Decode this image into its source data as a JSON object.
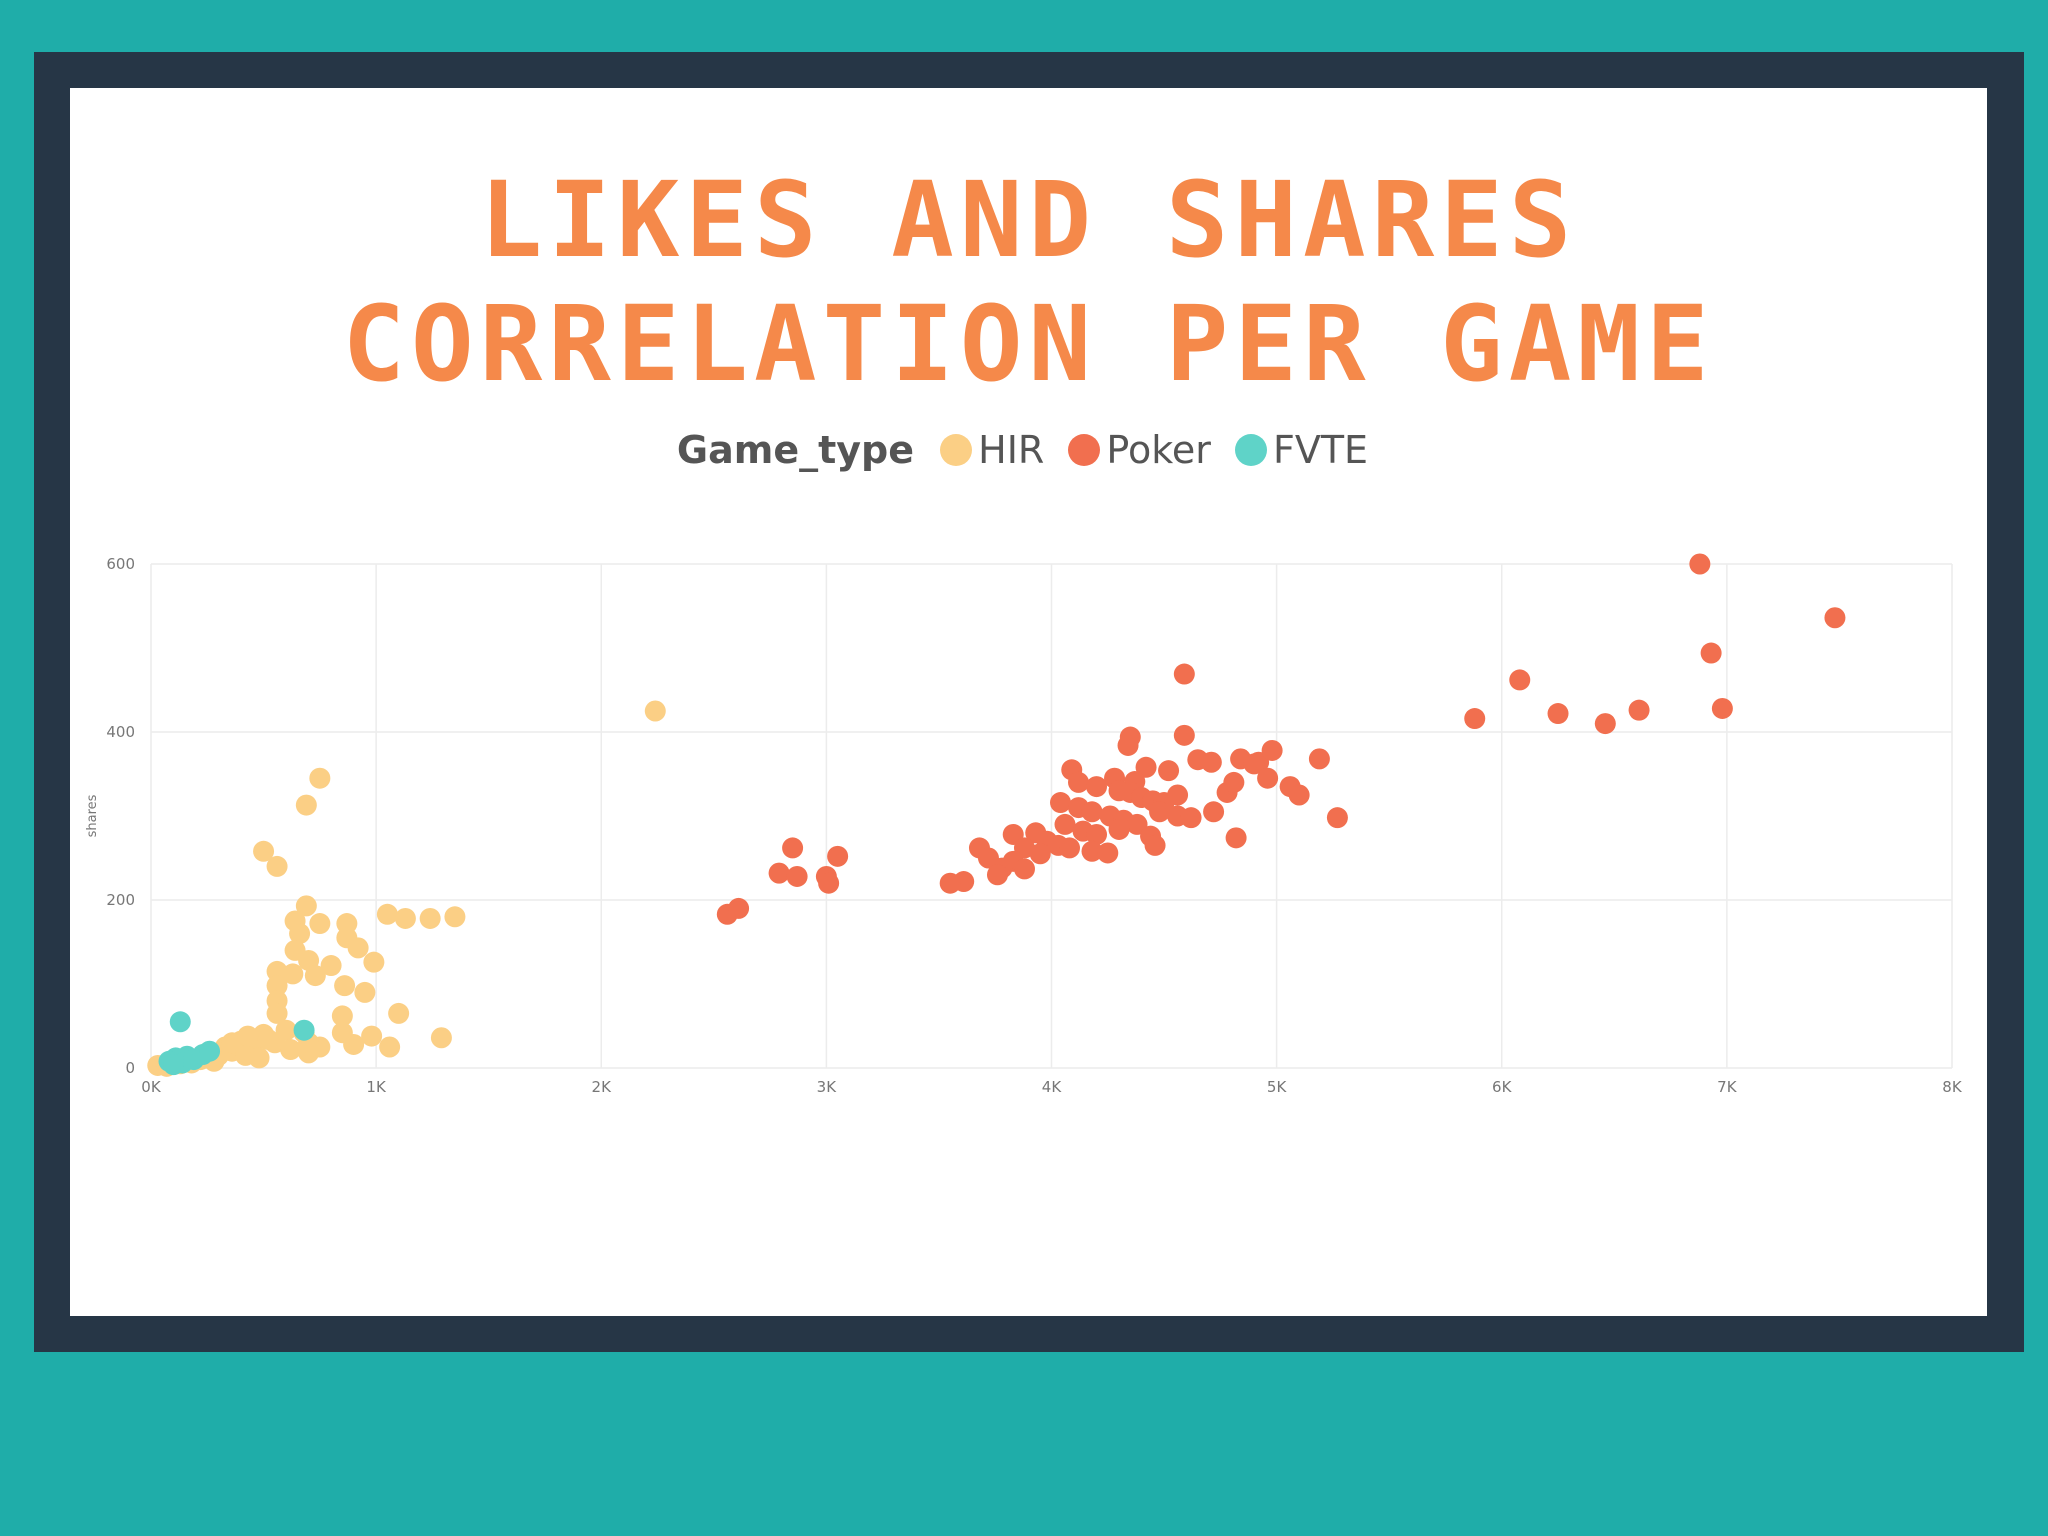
{
  "chart_data": {
    "type": "scatter",
    "title_lines": [
      "LIKES AND SHARES",
      "CORRELATION PER GAME"
    ],
    "legend_title": "Game_type",
    "ylabel": "shares",
    "xlabel": "",
    "xlim": [
      0,
      8000
    ],
    "ylim": [
      0,
      600
    ],
    "xticks": [
      0,
      1000,
      2000,
      3000,
      4000,
      5000,
      6000,
      7000,
      8000
    ],
    "xtick_labels": [
      "0K",
      "1K",
      "2K",
      "3K",
      "4K",
      "5K",
      "6K",
      "7K",
      "8K"
    ],
    "yticks": [
      0,
      200,
      400,
      600
    ],
    "ytick_labels": [
      "0",
      "200",
      "400",
      "600"
    ],
    "grid": true,
    "legend_position": "top-center",
    "series": [
      {
        "name": "HIR",
        "color": "#fbcf85",
        "points": [
          [
            2240,
            425
          ],
          [
            750,
            345
          ],
          [
            690,
            313
          ],
          [
            500,
            258
          ],
          [
            560,
            240
          ],
          [
            690,
            193
          ],
          [
            640,
            175
          ],
          [
            750,
            172
          ],
          [
            870,
            172
          ],
          [
            1050,
            183
          ],
          [
            1130,
            178
          ],
          [
            1240,
            178
          ],
          [
            1350,
            180
          ],
          [
            660,
            160
          ],
          [
            870,
            155
          ],
          [
            920,
            143
          ],
          [
            640,
            140
          ],
          [
            700,
            128
          ],
          [
            800,
            122
          ],
          [
            990,
            126
          ],
          [
            560,
            115
          ],
          [
            630,
            112
          ],
          [
            730,
            110
          ],
          [
            860,
            98
          ],
          [
            560,
            98
          ],
          [
            950,
            90
          ],
          [
            560,
            80
          ],
          [
            560,
            65
          ],
          [
            850,
            62
          ],
          [
            1100,
            65
          ],
          [
            850,
            42
          ],
          [
            980,
            38
          ],
          [
            1290,
            36
          ],
          [
            900,
            28
          ],
          [
            1060,
            25
          ],
          [
            500,
            40
          ],
          [
            600,
            45
          ],
          [
            680,
            42
          ],
          [
            400,
            32
          ],
          [
            330,
            25
          ],
          [
            450,
            28
          ],
          [
            550,
            30
          ],
          [
            620,
            22
          ],
          [
            700,
            18
          ],
          [
            750,
            25
          ],
          [
            250,
            18
          ],
          [
            300,
            15
          ],
          [
            360,
            20
          ],
          [
            420,
            15
          ],
          [
            480,
            12
          ],
          [
            280,
            8
          ],
          [
            180,
            6
          ],
          [
            220,
            10
          ],
          [
            130,
            5
          ],
          [
            30,
            3
          ],
          [
            70,
            2
          ],
          [
            360,
            30
          ],
          [
            430,
            38
          ],
          [
            520,
            34
          ],
          [
            700,
            30
          ]
        ]
      },
      {
        "name": "Poker",
        "color": "#f16f4f",
        "points": [
          [
            6880,
            600
          ],
          [
            7480,
            536
          ],
          [
            6930,
            494
          ],
          [
            4590,
            469
          ],
          [
            6080,
            462
          ],
          [
            6250,
            422
          ],
          [
            6460,
            410
          ],
          [
            6610,
            426
          ],
          [
            6980,
            428
          ],
          [
            5880,
            416
          ],
          [
            4350,
            394
          ],
          [
            4340,
            384
          ],
          [
            4590,
            396
          ],
          [
            4650,
            367
          ],
          [
            4710,
            364
          ],
          [
            4840,
            368
          ],
          [
            4920,
            364
          ],
          [
            4980,
            378
          ],
          [
            5190,
            368
          ],
          [
            4090,
            355
          ],
          [
            4420,
            358
          ],
          [
            4520,
            354
          ],
          [
            4280,
            345
          ],
          [
            4370,
            341
          ],
          [
            4120,
            340
          ],
          [
            4200,
            335
          ],
          [
            4300,
            330
          ],
          [
            4350,
            328
          ],
          [
            4400,
            322
          ],
          [
            4450,
            318
          ],
          [
            4500,
            316
          ],
          [
            4560,
            325
          ],
          [
            4040,
            316
          ],
          [
            4120,
            310
          ],
          [
            4180,
            305
          ],
          [
            4260,
            300
          ],
          [
            4320,
            295
          ],
          [
            4380,
            290
          ],
          [
            4480,
            305
          ],
          [
            4560,
            300
          ],
          [
            4620,
            298
          ],
          [
            4720,
            305
          ],
          [
            4780,
            328
          ],
          [
            4810,
            340
          ],
          [
            4900,
            362
          ],
          [
            4960,
            345
          ],
          [
            5060,
            335
          ],
          [
            5100,
            325
          ],
          [
            5270,
            298
          ],
          [
            4060,
            290
          ],
          [
            4140,
            282
          ],
          [
            4200,
            278
          ],
          [
            4300,
            284
          ],
          [
            3830,
            278
          ],
          [
            3930,
            280
          ],
          [
            3980,
            270
          ],
          [
            4030,
            265
          ],
          [
            4080,
            262
          ],
          [
            3880,
            262
          ],
          [
            3950,
            255
          ],
          [
            4180,
            258
          ],
          [
            4250,
            256
          ],
          [
            4440,
            276
          ],
          [
            4460,
            265
          ],
          [
            4820,
            274
          ],
          [
            3680,
            262
          ],
          [
            3720,
            250
          ],
          [
            3830,
            246
          ],
          [
            3880,
            237
          ],
          [
            3780,
            238
          ],
          [
            3760,
            230
          ],
          [
            3610,
            222
          ],
          [
            3550,
            220
          ],
          [
            2850,
            262
          ],
          [
            3050,
            252
          ],
          [
            3000,
            228
          ],
          [
            3010,
            220
          ],
          [
            2790,
            232
          ],
          [
            2870,
            228
          ],
          [
            2560,
            183
          ],
          [
            2610,
            190
          ]
        ]
      },
      {
        "name": "FVTE",
        "color": "#5fd3c8",
        "points": [
          [
            130,
            55
          ],
          [
            680,
            45
          ],
          [
            160,
            14
          ],
          [
            110,
            12
          ],
          [
            80,
            8
          ],
          [
            140,
            6
          ],
          [
            190,
            10
          ],
          [
            230,
            16
          ],
          [
            260,
            20
          ],
          [
            100,
            4
          ]
        ]
      }
    ]
  }
}
